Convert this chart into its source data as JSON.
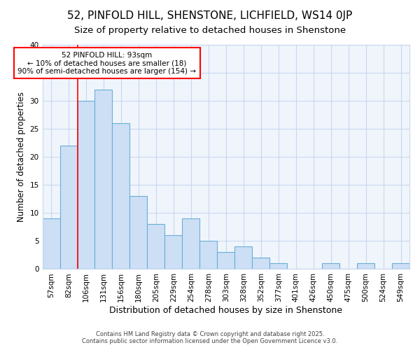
{
  "title1": "52, PINFOLD HILL, SHENSTONE, LICHFIELD, WS14 0JP",
  "title2": "Size of property relative to detached houses in Shenstone",
  "xlabel": "Distribution of detached houses by size in Shenstone",
  "ylabel": "Number of detached properties",
  "categories": [
    "57sqm",
    "82sqm",
    "106sqm",
    "131sqm",
    "156sqm",
    "180sqm",
    "205sqm",
    "229sqm",
    "254sqm",
    "278sqm",
    "303sqm",
    "328sqm",
    "352sqm",
    "377sqm",
    "401sqm",
    "426sqm",
    "450sqm",
    "475sqm",
    "500sqm",
    "524sqm",
    "549sqm"
  ],
  "values": [
    9,
    22,
    30,
    32,
    26,
    13,
    8,
    6,
    9,
    5,
    3,
    4,
    2,
    1,
    0,
    0,
    1,
    0,
    1,
    0,
    1
  ],
  "bar_color": "#ccdff5",
  "bar_edge_color": "#6aaed6",
  "red_line_x": 1.5,
  "annotation_text": "52 PINFOLD HILL: 93sqm\n← 10% of detached houses are smaller (18)\n90% of semi-detached houses are larger (154) →",
  "annotation_box_color": "white",
  "annotation_box_edge_color": "red",
  "ylim": [
    0,
    40
  ],
  "yticks": [
    0,
    5,
    10,
    15,
    20,
    25,
    30,
    35,
    40
  ],
  "footer1": "Contains HM Land Registry data © Crown copyright and database right 2025.",
  "footer2": "Contains public sector information licensed under the Open Government Licence v3.0.",
  "bg_color": "#ffffff",
  "plot_bg_color": "#f0f5fc",
  "grid_color": "#c8d8ee",
  "title_fontsize": 11,
  "subtitle_fontsize": 9.5,
  "tick_fontsize": 7.5,
  "ylabel_fontsize": 8.5,
  "xlabel_fontsize": 9
}
